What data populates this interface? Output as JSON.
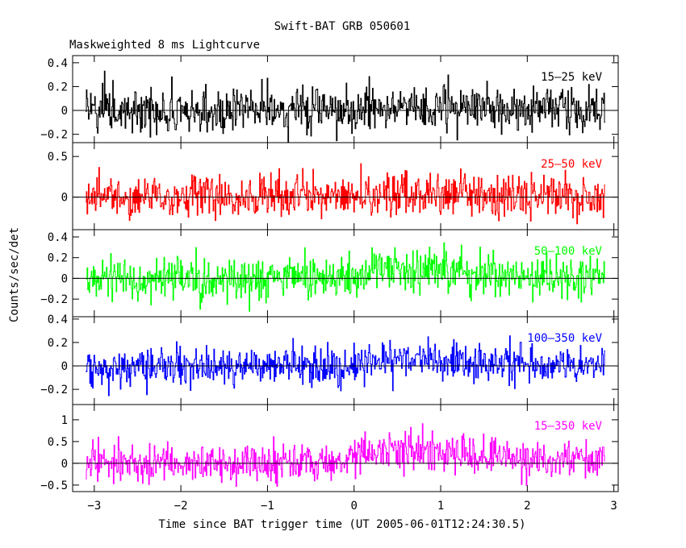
{
  "chart_data": {
    "type": "line",
    "title": "Swift-BAT GRB 050601",
    "subtitle": "Maskweighted 8 ms Lightcurve",
    "xlabel": "Time since BAT trigger time (UT 2005-06-01T12:24:30.5)",
    "ylabel": "Counts/sec/det",
    "xlim": [
      -3.25,
      3.05
    ],
    "x_range": [
      -3.1,
      2.9
    ],
    "bin_width_s": 0.008,
    "x_ticks": [
      -3,
      -2,
      -1,
      0,
      1,
      2,
      3
    ],
    "x_tick_labels": [
      "−3",
      "−2",
      "−1",
      "0",
      "1",
      "2",
      "3"
    ],
    "panels": [
      {
        "name": "15–25 keV",
        "color": "#000000",
        "ylim": [
          -0.27,
          0.46
        ],
        "y_ticks": [
          -0.2,
          0,
          0.2,
          0.4
        ],
        "y_tick_labels": [
          "−0.2",
          "0",
          "0.2",
          "0.4"
        ],
        "noise_sd": 0.1,
        "mean_profile": [
          [
            -3.1,
            0.0
          ],
          [
            -0.2,
            0.0
          ],
          [
            0.6,
            0.02
          ],
          [
            1.6,
            0.02
          ],
          [
            2.9,
            0.0
          ]
        ]
      },
      {
        "name": "25–50 keV",
        "color": "#ff0000",
        "ylim": [
          -0.4,
          0.67
        ],
        "y_ticks": [
          0,
          0.5
        ],
        "y_tick_labels": [
          "0",
          "0.5"
        ],
        "noise_sd": 0.13,
        "mean_profile": [
          [
            -3.1,
            0.0
          ],
          [
            0.0,
            0.0
          ],
          [
            0.5,
            0.06
          ],
          [
            1.2,
            0.05
          ],
          [
            2.0,
            0.03
          ],
          [
            2.9,
            0.0
          ]
        ]
      },
      {
        "name": "50–100 keV",
        "color": "#00ff00",
        "ylim": [
          -0.37,
          0.47
        ],
        "y_ticks": [
          -0.2,
          0,
          0.2,
          0.4
        ],
        "y_tick_labels": [
          "−0.2",
          "0",
          "0.2",
          "0.4"
        ],
        "noise_sd": 0.1,
        "mean_profile": [
          [
            -3.1,
            0.0
          ],
          [
            0.0,
            0.02
          ],
          [
            0.3,
            0.1
          ],
          [
            0.8,
            0.09
          ],
          [
            1.3,
            0.07
          ],
          [
            2.0,
            0.03
          ],
          [
            2.9,
            0.01
          ]
        ]
      },
      {
        "name": "100–350 keV",
        "color": "#0000ff",
        "ylim": [
          -0.33,
          0.42
        ],
        "y_ticks": [
          -0.2,
          0,
          0.2,
          0.4
        ],
        "y_tick_labels": [
          "−0.2",
          "0",
          "0.2",
          "0.4"
        ],
        "noise_sd": 0.08,
        "mean_profile": [
          [
            -3.1,
            0.0
          ],
          [
            0.0,
            0.01
          ],
          [
            0.5,
            0.05
          ],
          [
            1.2,
            0.04
          ],
          [
            2.0,
            0.02
          ],
          [
            2.9,
            0.0
          ]
        ]
      },
      {
        "name": "15–350 keV",
        "color": "#ff00ff",
        "ylim": [
          -0.65,
          1.35
        ],
        "y_ticks": [
          -0.5,
          0,
          0.5,
          1
        ],
        "y_tick_labels": [
          "−0.5",
          "0",
          "0.5",
          "1"
        ],
        "noise_sd": 0.22,
        "mean_profile": [
          [
            -3.1,
            0.0
          ],
          [
            -0.2,
            0.02
          ],
          [
            0.2,
            0.3
          ],
          [
            0.7,
            0.28
          ],
          [
            1.3,
            0.22
          ],
          [
            2.0,
            0.1
          ],
          [
            2.9,
            0.03
          ]
        ]
      }
    ],
    "grid": false,
    "legend": "none (energy band label inside each panel at top-right)"
  }
}
